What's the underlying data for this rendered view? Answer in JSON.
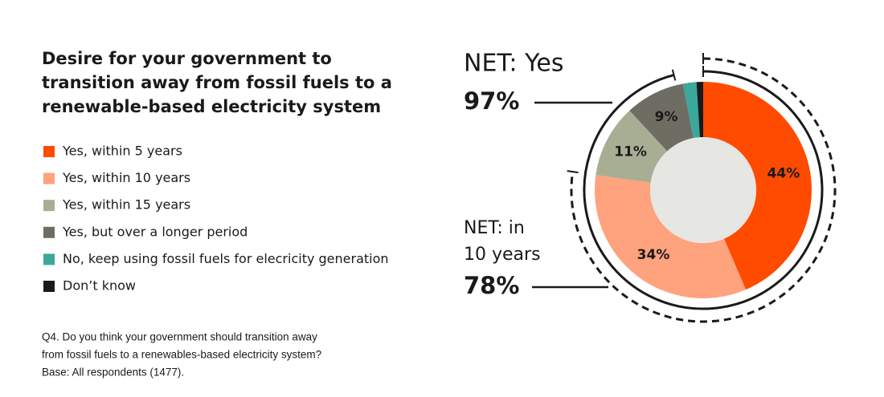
{
  "chart_data": {
    "type": "donut",
    "title_lines": [
      "Desire for your government to",
      "transition away from fossil fuels to a",
      "renewable-based electricity system"
    ],
    "categories": [
      "Yes, within 5 years",
      "Yes, within 10 years",
      "Yes, within 15 years",
      "Yes, but over a longer period",
      "No, keep using fossil fuels for elecricity generation",
      "Don’t know"
    ],
    "values": [
      44,
      34,
      11,
      9,
      2,
      1
    ],
    "value_labels": [
      "44%",
      "34%",
      "11%",
      "9%",
      null,
      null
    ],
    "colors": [
      "#ff4b00",
      "#ffa27e",
      "#a8ae94",
      "#6e6d63",
      "#3aa89a",
      "#1a1a1a"
    ],
    "annotations": [
      {
        "title_lines": [
          "NET: Yes"
        ],
        "value": 97,
        "value_label": "97%",
        "style": "solid"
      },
      {
        "title_lines": [
          "NET: in",
          "10 years"
        ],
        "value": 78,
        "value_label": "78%",
        "style": "dashed"
      }
    ],
    "footnote_lines": [
      "Q4. Do you think your government should transition away",
      "from fossil fuels to a renewables-based electricity system?",
      "Base: All respondents (1477)."
    ]
  }
}
